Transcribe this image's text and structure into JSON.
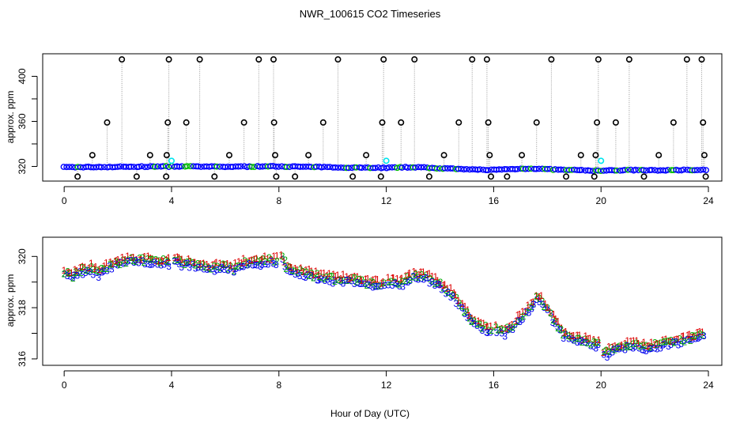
{
  "chart_data": [
    {
      "type": "scatter",
      "title": "NWR_100615  CO2 Timeseries",
      "xlabel": "",
      "ylabel": "approx. ppm",
      "xlim": [
        -0.8,
        24.5
      ],
      "ylim": [
        307,
        420
      ],
      "x_ticks": [
        0,
        4,
        8,
        12,
        16,
        20,
        24
      ],
      "y_ticks": [
        320,
        360,
        400
      ],
      "y_minor_ticks": [
        340,
        380
      ],
      "baseline_anchors": [
        [
          0,
          319.3
        ],
        [
          2,
          319.6
        ],
        [
          4,
          320.0
        ],
        [
          6,
          319.7
        ],
        [
          8,
          320.1
        ],
        [
          10,
          319.2
        ],
        [
          12,
          318.8
        ],
        [
          13,
          319.4
        ],
        [
          15,
          317.3
        ],
        [
          16,
          317.0
        ],
        [
          17.3,
          318.2
        ],
        [
          18.5,
          317.0
        ],
        [
          20,
          316.2
        ],
        [
          21,
          316.8
        ],
        [
          22,
          316.5
        ],
        [
          23.5,
          317.0
        ]
      ],
      "spikes": [
        {
          "x": 0.5,
          "y": 311
        },
        {
          "x": 1.05,
          "y": 330
        },
        {
          "x": 1.6,
          "y": 359
        },
        {
          "x": 2.15,
          "y": 415
        },
        {
          "x": 2.7,
          "y": 311
        },
        {
          "x": 3.2,
          "y": 330
        },
        {
          "x": 3.8,
          "y": 311
        },
        {
          "x": 3.82,
          "y": 330
        },
        {
          "x": 3.86,
          "y": 359
        },
        {
          "x": 3.9,
          "y": 415
        },
        {
          "x": 4.55,
          "y": 359
        },
        {
          "x": 5.05,
          "y": 415
        },
        {
          "x": 5.6,
          "y": 311
        },
        {
          "x": 6.15,
          "y": 330
        },
        {
          "x": 6.7,
          "y": 359
        },
        {
          "x": 7.25,
          "y": 415
        },
        {
          "x": 7.8,
          "y": 415
        },
        {
          "x": 7.82,
          "y": 359
        },
        {
          "x": 7.86,
          "y": 330
        },
        {
          "x": 7.9,
          "y": 311
        },
        {
          "x": 8.6,
          "y": 311
        },
        {
          "x": 9.1,
          "y": 330
        },
        {
          "x": 9.65,
          "y": 359
        },
        {
          "x": 10.2,
          "y": 415
        },
        {
          "x": 10.75,
          "y": 311
        },
        {
          "x": 11.25,
          "y": 330
        },
        {
          "x": 11.8,
          "y": 311
        },
        {
          "x": 11.85,
          "y": 359
        },
        {
          "x": 11.9,
          "y": 415
        },
        {
          "x": 12.55,
          "y": 359
        },
        {
          "x": 13.05,
          "y": 415
        },
        {
          "x": 13.6,
          "y": 311
        },
        {
          "x": 14.15,
          "y": 330
        },
        {
          "x": 14.7,
          "y": 359
        },
        {
          "x": 15.2,
          "y": 415
        },
        {
          "x": 15.75,
          "y": 415
        },
        {
          "x": 15.8,
          "y": 359
        },
        {
          "x": 15.85,
          "y": 330
        },
        {
          "x": 15.9,
          "y": 311
        },
        {
          "x": 16.5,
          "y": 311
        },
        {
          "x": 17.05,
          "y": 330
        },
        {
          "x": 17.6,
          "y": 359
        },
        {
          "x": 18.15,
          "y": 415
        },
        {
          "x": 18.7,
          "y": 311
        },
        {
          "x": 19.25,
          "y": 330
        },
        {
          "x": 19.75,
          "y": 311
        },
        {
          "x": 19.8,
          "y": 330
        },
        {
          "x": 19.85,
          "y": 359
        },
        {
          "x": 19.9,
          "y": 415
        },
        {
          "x": 20.55,
          "y": 359
        },
        {
          "x": 21.05,
          "y": 415
        },
        {
          "x": 21.6,
          "y": 311
        },
        {
          "x": 22.15,
          "y": 330
        },
        {
          "x": 22.7,
          "y": 359
        },
        {
          "x": 23.2,
          "y": 415
        },
        {
          "x": 23.75,
          "y": 415
        },
        {
          "x": 23.8,
          "y": 359
        },
        {
          "x": 23.85,
          "y": 330
        },
        {
          "x": 23.9,
          "y": 311
        }
      ],
      "cyan_points": [
        {
          "x": 4.0,
          "y": 325
        },
        {
          "x": 12.0,
          "y": 325
        },
        {
          "x": 20.0,
          "y": 325
        }
      ],
      "colors": {
        "spike_marker": "#000000",
        "baseline_marker": "#0000ff",
        "baseline_accent": "#00bb00",
        "reference": "#00e5ee",
        "spike_line": "#9a9a9a"
      }
    },
    {
      "type": "scatter",
      "title": "",
      "xlabel": "Hour of Day (UTC)",
      "ylabel": "approx. ppm",
      "xlim": [
        -0.8,
        24.5
      ],
      "ylim": [
        315.75,
        320.75
      ],
      "x_ticks": [
        0,
        4,
        8,
        12,
        16,
        20,
        24
      ],
      "y_ticks": [
        316,
        318,
        320
      ],
      "y_minor_ticks": [
        317,
        319
      ],
      "gap_hours": [
        4,
        8,
        12,
        16,
        20
      ],
      "series": [
        {
          "name": "1",
          "color": "#dd0000",
          "symbol": "1"
        },
        {
          "name": "2",
          "color": "#00aa00",
          "symbol": "2"
        },
        {
          "name": "3",
          "color": "#0000ee",
          "symbol": "3"
        }
      ],
      "anchors": [
        [
          0.0,
          319.35
        ],
        [
          0.3,
          319.25
        ],
        [
          0.6,
          319.45
        ],
        [
          1.0,
          319.55
        ],
        [
          1.3,
          319.35
        ],
        [
          1.6,
          319.6
        ],
        [
          2.0,
          319.75
        ],
        [
          2.5,
          319.85
        ],
        [
          3.0,
          319.85
        ],
        [
          3.5,
          319.8
        ],
        [
          3.95,
          319.8
        ],
        [
          4.05,
          319.85
        ],
        [
          4.5,
          319.75
        ],
        [
          5.0,
          319.65
        ],
        [
          5.5,
          319.55
        ],
        [
          6.0,
          319.65
        ],
        [
          6.3,
          319.5
        ],
        [
          6.7,
          319.75
        ],
        [
          7.2,
          319.8
        ],
        [
          7.6,
          319.85
        ],
        [
          7.95,
          319.85
        ],
        [
          8.05,
          320.0
        ],
        [
          8.3,
          319.6
        ],
        [
          8.8,
          319.4
        ],
        [
          9.3,
          319.25
        ],
        [
          9.8,
          319.15
        ],
        [
          10.3,
          319.1
        ],
        [
          10.8,
          319.1
        ],
        [
          11.3,
          318.95
        ],
        [
          11.95,
          318.9
        ],
        [
          12.05,
          319.0
        ],
        [
          12.6,
          319.0
        ],
        [
          13.0,
          319.25
        ],
        [
          13.5,
          319.2
        ],
        [
          14.0,
          318.9
        ],
        [
          14.5,
          318.5
        ],
        [
          14.9,
          317.9
        ],
        [
          15.2,
          317.55
        ],
        [
          15.6,
          317.25
        ],
        [
          15.95,
          317.15
        ],
        [
          16.05,
          317.2
        ],
        [
          16.4,
          317.05
        ],
        [
          16.8,
          317.4
        ],
        [
          17.2,
          317.85
        ],
        [
          17.6,
          318.35
        ],
        [
          17.8,
          318.3
        ],
        [
          18.2,
          317.6
        ],
        [
          18.6,
          317.0
        ],
        [
          19.0,
          316.75
        ],
        [
          19.5,
          316.7
        ],
        [
          19.95,
          316.55
        ],
        [
          20.05,
          316.2
        ],
        [
          20.4,
          316.35
        ],
        [
          20.8,
          316.5
        ],
        [
          21.2,
          316.6
        ],
        [
          21.6,
          316.45
        ],
        [
          22.0,
          316.55
        ],
        [
          22.5,
          316.65
        ],
        [
          23.0,
          316.7
        ],
        [
          23.5,
          316.85
        ],
        [
          23.8,
          316.9
        ]
      ]
    }
  ],
  "figure_title": "NWR_100615  CO2 Timeseries",
  "x_axis_label": "Hour of Day (UTC)",
  "y_axis_label_top": "approx. ppm",
  "y_axis_label_bottom": "approx. ppm"
}
